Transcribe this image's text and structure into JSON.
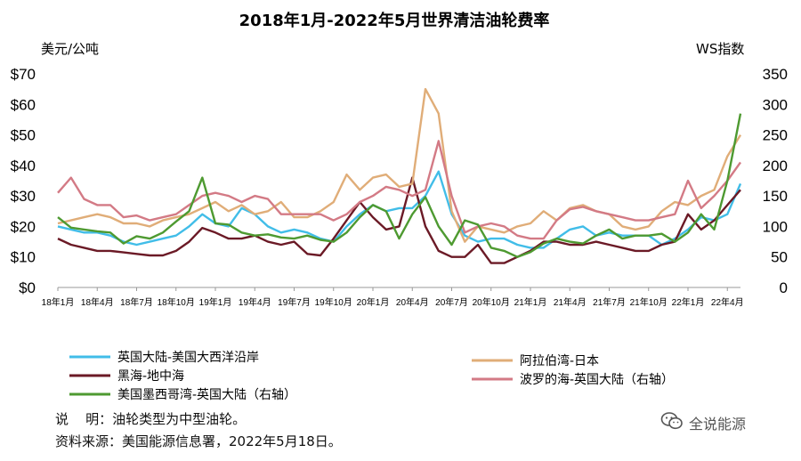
{
  "chart_data": {
    "type": "line",
    "title": "2018年1月-2022年5月世界清洁油轮费率",
    "ylabel_left": "美元/公吨",
    "ylabel_right": "WS指数",
    "y_left": {
      "min": 0,
      "max": 70,
      "ticks": [
        "$0",
        "$10",
        "$20",
        "$30",
        "$40",
        "$50",
        "$60",
        "$70"
      ]
    },
    "y_right": {
      "min": 0,
      "max": 350,
      "ticks": [
        "0",
        "50",
        "100",
        "150",
        "200",
        "250",
        "300",
        "350"
      ]
    },
    "x_ticks": [
      "18年1月",
      "18年4月",
      "18年7月",
      "18年10月",
      "19年1月",
      "19年4月",
      "19年7月",
      "19年10月",
      "20年1月",
      "20年4月",
      "20年7月",
      "20年10月",
      "21年1月",
      "21年4月",
      "21年7月",
      "21年10月",
      "22年1月",
      "22年4月"
    ],
    "x_count": 53,
    "grid": false,
    "series": [
      {
        "name": "英国大陆-美国大西洋沿岸",
        "color": "#41bde8",
        "axis": "left",
        "values": [
          20,
          19,
          18,
          18,
          17,
          15,
          14,
          15,
          16,
          17,
          20,
          24,
          21,
          20,
          26,
          24,
          20,
          18,
          19,
          18,
          16,
          15,
          20,
          24,
          27,
          25,
          26,
          26,
          30,
          38,
          24,
          17,
          15,
          16,
          16,
          14,
          13,
          13,
          16,
          19,
          20,
          17,
          18,
          17,
          17,
          17,
          14,
          16,
          19,
          23,
          22,
          24,
          34
        ]
      },
      {
        "name": "黑海-地中海",
        "color": "#6b1a26",
        "axis": "left",
        "values": [
          16,
          14,
          13,
          12,
          12,
          11.5,
          11,
          10.5,
          10.5,
          12,
          15,
          19.5,
          18,
          16,
          16,
          17,
          15,
          14,
          15,
          11,
          10.5,
          16,
          22,
          28,
          23,
          19,
          20,
          36,
          20,
          12,
          10,
          10,
          14,
          8,
          8,
          10,
          12,
          15,
          15,
          14,
          14,
          15,
          14,
          13,
          12,
          12,
          14,
          15,
          24,
          19,
          22,
          27,
          32
        ]
      },
      {
        "name": "美国墨西哥湾-英国大陆（右轴）",
        "color": "#4e9a31",
        "axis": "right",
        "values": [
          115,
          98,
          95,
          92,
          90,
          72,
          84,
          80,
          90,
          108,
          125,
          180,
          105,
          103,
          90,
          85,
          87,
          82,
          80,
          85,
          78,
          75,
          90,
          115,
          135,
          125,
          80,
          120,
          148,
          100,
          70,
          110,
          103,
          65,
          60,
          50,
          58,
          72,
          80,
          75,
          72,
          85,
          95,
          80,
          85,
          85,
          88,
          75,
          90,
          120,
          95,
          175,
          285
        ]
      },
      {
        "name": "阿拉伯湾-日本",
        "color": "#e0ad78",
        "axis": "left",
        "values": [
          21,
          22,
          23,
          24,
          23,
          21,
          21,
          20,
          22,
          23,
          24,
          26,
          28,
          25,
          27,
          24,
          25,
          28,
          23,
          23,
          25,
          28,
          37,
          32,
          36,
          37,
          33,
          34,
          65,
          57,
          25,
          15,
          20,
          19,
          18,
          20,
          21,
          25,
          22,
          26,
          27,
          25,
          24,
          20,
          19,
          20,
          25,
          28,
          27,
          30,
          32,
          43,
          50
        ]
      },
      {
        "name": "波罗的海-英国大陆（右轴）",
        "color": "#d37a85",
        "axis": "right",
        "values": [
          155,
          180,
          145,
          135,
          135,
          115,
          118,
          110,
          115,
          120,
          135,
          150,
          155,
          150,
          140,
          150,
          145,
          120,
          120,
          120,
          120,
          110,
          120,
          140,
          150,
          165,
          160,
          150,
          160,
          240,
          150,
          90,
          100,
          105,
          100,
          85,
          80,
          80,
          110,
          128,
          132,
          125,
          120,
          115,
          110,
          110,
          115,
          120,
          175,
          130,
          150,
          175,
          205
        ]
      }
    ]
  },
  "legend": {
    "item1": "英国大陆-美国大西洋沿岸",
    "item2": "黑海-地中海",
    "item3": "美国墨西哥湾-英国大陆（右轴）",
    "item4": "阿拉伯湾-日本",
    "item5": "波罗的海-英国大陆（右轴）"
  },
  "notes": {
    "line1": "说    明：油轮类型为中型油轮。",
    "line2": "资料来源：美国能源信息署，2022年5月18日。"
  },
  "watermark": {
    "text": "全说能源",
    "icon": "wechat-icon"
  }
}
